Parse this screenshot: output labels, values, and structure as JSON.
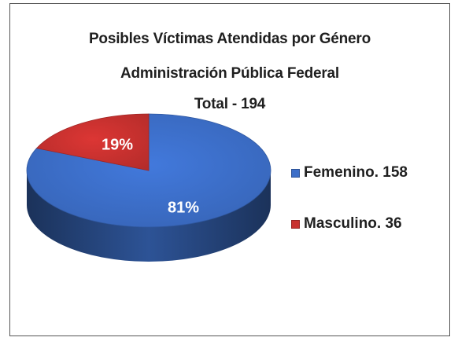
{
  "chart_data": {
    "type": "pie",
    "title_lines": [
      "Posibles Víctimas Atendidas por Género",
      "Administración Pública Federal",
      "Total - 194"
    ],
    "categories": [
      "Femenino",
      "Masculino"
    ],
    "values": [
      158,
      36
    ],
    "percent_labels": [
      "81%",
      "19%"
    ],
    "legend": [
      "Femenino. 158",
      "Masculino. 36"
    ],
    "colors": [
      "#3c6ec8",
      "#c8312f"
    ],
    "style": "3d",
    "legend_position": "right"
  }
}
